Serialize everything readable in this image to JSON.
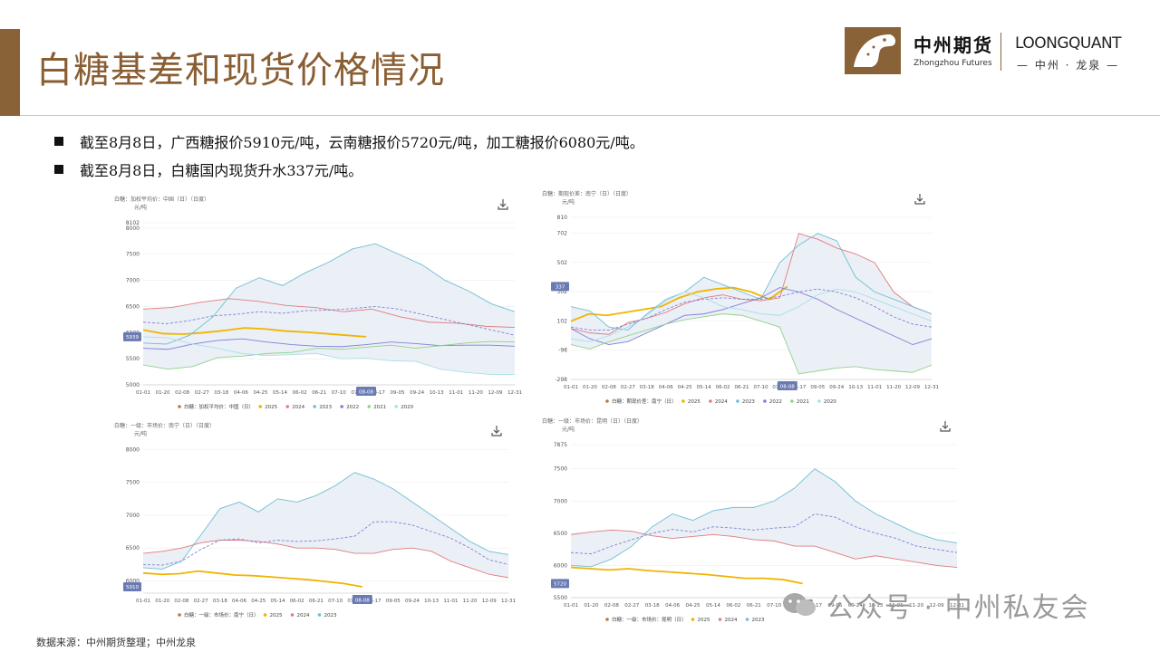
{
  "page": {
    "title": "白糖基差和现货价格情况",
    "logo_cn": "中州期货",
    "logo_en": "Zhongzhou Futures",
    "brand2_en": "LOONGQUANT",
    "brand2_cn": "— 中州 · 龙泉 —",
    "bullets": [
      "截至8月8日，广西糖报价5910元/吨，云南糖报价5720元/吨，加工糖报价6080元/吨。",
      "截至8月8日，白糖国内现货升水337元/吨。"
    ],
    "source": "数据来源：中州期货整理；中州龙泉",
    "watermark": "公众号 · 中州私友会"
  },
  "colors": {
    "accent": "#8a6238",
    "s2025": "#f0b400",
    "s2024": "#e07c7c",
    "s2023": "#6fbfd3",
    "s2022": "#8080d8",
    "s2021": "#8fd48a",
    "s2020": "#a8e0ea",
    "band": "#e8ecf4",
    "marker": "#6a7bb3"
  },
  "chart_data": [
    {
      "type": "line",
      "title": "白糖：加权平均价：中国（日）（日度）",
      "ylabel": "元/吨",
      "ylim": [
        5000,
        8102
      ],
      "yticks": [
        5000,
        5500,
        6000,
        6500,
        7000,
        7500,
        8000,
        8102
      ],
      "x_labels": [
        "01-01",
        "01-20",
        "02-08",
        "02-27",
        "03-18",
        "04-06",
        "04-25",
        "05-14",
        "06-02",
        "06-21",
        "07-10",
        "07-29",
        "08-17",
        "09-05",
        "09-24",
        "10-13",
        "11-01",
        "11-20",
        "12-09",
        "12-31"
      ],
      "cursor": {
        "x_label": "08-08",
        "value": "5939"
      },
      "legend_title": "白糖：加权平均价：中国（日）",
      "legend": [
        "2025",
        "2024",
        "2023",
        "2022",
        "2021",
        "2020"
      ],
      "series": [
        {
          "name": "2025",
          "values": [
            6050,
            5980,
            5970,
            6000,
            6040,
            6090,
            6070,
            6030,
            6010,
            5980,
            5950,
            5920
          ]
        },
        {
          "name": "2024",
          "values": [
            6450,
            6480,
            6580,
            6650,
            6600,
            6520,
            6480,
            6400,
            6450,
            6300,
            6200,
            6180,
            6120,
            6100
          ]
        },
        {
          "name": "2023",
          "values": [
            5800,
            5780,
            5950,
            6300,
            6850,
            7050,
            6900,
            7150,
            7350,
            7600,
            7700,
            7500,
            7300,
            7000,
            6800,
            6550,
            6400
          ]
        },
        {
          "name": "2022",
          "values": [
            5700,
            5680,
            5780,
            5850,
            5880,
            5820,
            5770,
            5740,
            5730,
            5770,
            5820,
            5790,
            5750,
            5760,
            5760,
            5740
          ]
        },
        {
          "name": "2021",
          "values": [
            5380,
            5300,
            5350,
            5520,
            5550,
            5600,
            5620,
            5700,
            5680,
            5720,
            5760,
            5700,
            5750,
            5800,
            5830,
            5820
          ]
        },
        {
          "name": "2020",
          "values": [
            5920,
            5900,
            5780,
            5700,
            5600,
            5560,
            5580,
            5600,
            5500,
            5510,
            5460,
            5450,
            5300,
            5240,
            5200,
            5200
          ]
        },
        {
          "name": "avg",
          "values": [
            6200,
            6170,
            6230,
            6320,
            6350,
            6400,
            6370,
            6420,
            6430,
            6460,
            6500,
            6450,
            6350,
            6250,
            6150,
            6050,
            5950
          ]
        }
      ]
    },
    {
      "type": "line",
      "title": "白糖：期现价差：南宁（日）（日度）",
      "ylabel": "元/吨",
      "ylim": [
        -298,
        810
      ],
      "yticks": [
        -298,
        -98,
        102,
        302,
        502,
        702,
        810
      ],
      "x_labels": [
        "01-01",
        "01-20",
        "02-08",
        "02-27",
        "03-18",
        "04-06",
        "04-25",
        "05-14",
        "06-02",
        "06-21",
        "07-10",
        "07-29",
        "08-17",
        "09-05",
        "09-24",
        "10-13",
        "11-01",
        "11-20",
        "12-09",
        "12-31"
      ],
      "cursor": {
        "x_label": "08-08",
        "value": "337"
      },
      "legend_title": "白糖：期现价差：南宁（日）",
      "legend": [
        "2025",
        "2024",
        "2023",
        "2022",
        "2021",
        "2020"
      ],
      "series": [
        {
          "name": "2025",
          "values": [
            100,
            150,
            140,
            160,
            180,
            200,
            260,
            300,
            320,
            330,
            300,
            250,
            337
          ]
        },
        {
          "name": "2024",
          "values": [
            50,
            20,
            10,
            90,
            120,
            160,
            220,
            260,
            280,
            250,
            240,
            260,
            700,
            660,
            600,
            560,
            500,
            300,
            200,
            150
          ]
        },
        {
          "name": "2023",
          "values": [
            200,
            170,
            60,
            40,
            150,
            250,
            300,
            400,
            350,
            300,
            250,
            500,
            620,
            700,
            650,
            400,
            300,
            250,
            200,
            150
          ]
        },
        {
          "name": "2022",
          "values": [
            50,
            -20,
            -60,
            -40,
            20,
            80,
            140,
            150,
            180,
            220,
            260,
            330,
            300,
            250,
            180,
            120,
            60,
            0,
            -60,
            -20
          ]
        },
        {
          "name": "2021",
          "values": [
            -60,
            -90,
            -40,
            0,
            40,
            80,
            110,
            130,
            150,
            140,
            100,
            60,
            -260,
            -240,
            -220,
            -210,
            -230,
            -240,
            -250,
            -200
          ]
        },
        {
          "name": "2020",
          "values": [
            -20,
            -40,
            0,
            60,
            140,
            240,
            300,
            260,
            200,
            180,
            150,
            140,
            200,
            280,
            320,
            300,
            250,
            200,
            150,
            100
          ]
        },
        {
          "name": "avg",
          "values": [
            60,
            40,
            40,
            80,
            120,
            180,
            230,
            250,
            260,
            250,
            250,
            270,
            300,
            320,
            300,
            260,
            200,
            130,
            80,
            60
          ]
        }
      ]
    },
    {
      "type": "line",
      "title": "白糖：一级：市场价：南宁（日）（日度）",
      "ylabel": "元/吨",
      "ylim": [
        5814,
        8005
      ],
      "yticks": [
        6000,
        6500,
        7000,
        7500,
        8000
      ],
      "x_labels": [
        "01-01",
        "01-20",
        "02-08",
        "02-27",
        "03-18",
        "04-06",
        "04-25",
        "05-14",
        "06-02",
        "06-21",
        "07-10",
        "07-29",
        "08-17",
        "09-05",
        "09-24",
        "10-13",
        "11-01",
        "11-20",
        "12-09",
        "12-31"
      ],
      "cursor": {
        "x_label": "08-08",
        "value": "5910"
      },
      "legend_title": "白糖：一级：市场价：南宁（日）",
      "legend": [
        "2025",
        "2024",
        "2023"
      ],
      "series": [
        {
          "name": "2025",
          "values": [
            6120,
            6100,
            6110,
            6150,
            6120,
            6090,
            6080,
            6060,
            6040,
            6020,
            5990,
            5960,
            5910
          ]
        },
        {
          "name": "2024",
          "values": [
            6420,
            6450,
            6500,
            6580,
            6620,
            6620,
            6600,
            6560,
            6500,
            6500,
            6480,
            6420,
            6420,
            6480,
            6500,
            6450,
            6300,
            6200,
            6100,
            6050
          ]
        },
        {
          "name": "2023",
          "values": [
            6200,
            6180,
            6300,
            6700,
            7100,
            7200,
            7050,
            7250,
            7200,
            7300,
            7450,
            7650,
            7550,
            7400,
            7200,
            7000,
            6800,
            6600,
            6450,
            6400
          ]
        },
        {
          "name": "avg",
          "values": [
            6250,
            6240,
            6300,
            6480,
            6620,
            6640,
            6580,
            6620,
            6600,
            6610,
            6640,
            6680,
            6900,
            6900,
            6850,
            6750,
            6650,
            6500,
            6320,
            6250
          ]
        }
      ]
    },
    {
      "type": "line",
      "title": "白糖：一级：市场价：昆明（日）（日度）",
      "ylabel": "元/吨",
      "ylim": [
        5500,
        7875
      ],
      "yticks": [
        5500,
        6000,
        6500,
        7000,
        7500,
        7875
      ],
      "x_labels": [
        "01-01",
        "01-20",
        "02-08",
        "02-27",
        "03-18",
        "04-06",
        "04-25",
        "05-14",
        "06-02",
        "06-21",
        "07-10",
        "07-29",
        "08-17",
        "09-05",
        "09-24",
        "10-13",
        "11-01",
        "11-20",
        "12-09",
        "12-31"
      ],
      "cursor": {
        "x_label": "08-08",
        "value": "5720"
      },
      "legend_title": "白糖：一级：市场价：昆明（日）",
      "legend": [
        "2025",
        "2024",
        "2023"
      ],
      "series": [
        {
          "name": "2025",
          "values": [
            5970,
            5950,
            5930,
            5950,
            5920,
            5900,
            5880,
            5860,
            5830,
            5800,
            5800,
            5780,
            5720
          ]
        },
        {
          "name": "2024",
          "values": [
            6480,
            6520,
            6550,
            6530,
            6460,
            6420,
            6450,
            6480,
            6450,
            6400,
            6380,
            6300,
            6300,
            6200,
            6100,
            6150,
            6100,
            6050,
            6000,
            5970
          ]
        },
        {
          "name": "2023",
          "values": [
            6000,
            5980,
            6100,
            6300,
            6600,
            6800,
            6700,
            6850,
            6900,
            6900,
            7000,
            7200,
            7500,
            7300,
            7000,
            6800,
            6650,
            6500,
            6400,
            6350
          ]
        },
        {
          "name": "avg",
          "values": [
            6200,
            6180,
            6300,
            6400,
            6500,
            6560,
            6520,
            6600,
            6580,
            6550,
            6580,
            6600,
            6800,
            6750,
            6600,
            6500,
            6420,
            6300,
            6250,
            6200
          ]
        }
      ]
    }
  ]
}
